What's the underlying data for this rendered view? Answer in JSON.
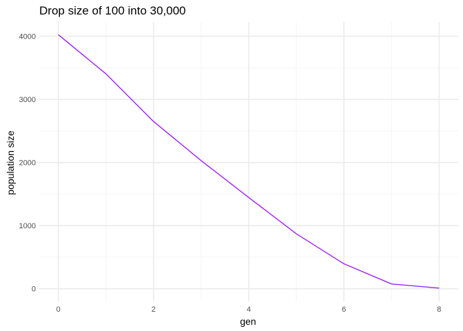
{
  "chart_data": {
    "type": "line",
    "title": "Drop size of 100 into 30,000",
    "xlabel": "gen",
    "ylabel": "population size",
    "x": [
      0,
      1,
      2,
      3,
      4,
      5,
      6,
      7,
      8
    ],
    "series": [
      {
        "values": [
          4025,
          3405,
          2650,
          2030,
          1445,
          870,
          395,
          75,
          10
        ]
      }
    ],
    "xlim": [
      -0.4,
      8.4
    ],
    "ylim": [
      -200,
      4225
    ],
    "x_ticks": [
      "0",
      "2",
      "4",
      "6",
      "8"
    ],
    "y_ticks": [
      "0",
      "1000",
      "2000",
      "3000",
      "4000"
    ],
    "grid": true,
    "legend": "none",
    "colors": {
      "line": "#a020f0",
      "grid_major": "#ebebeb",
      "grid_minor": "#f5f5f5",
      "background": "#ffffff"
    }
  }
}
